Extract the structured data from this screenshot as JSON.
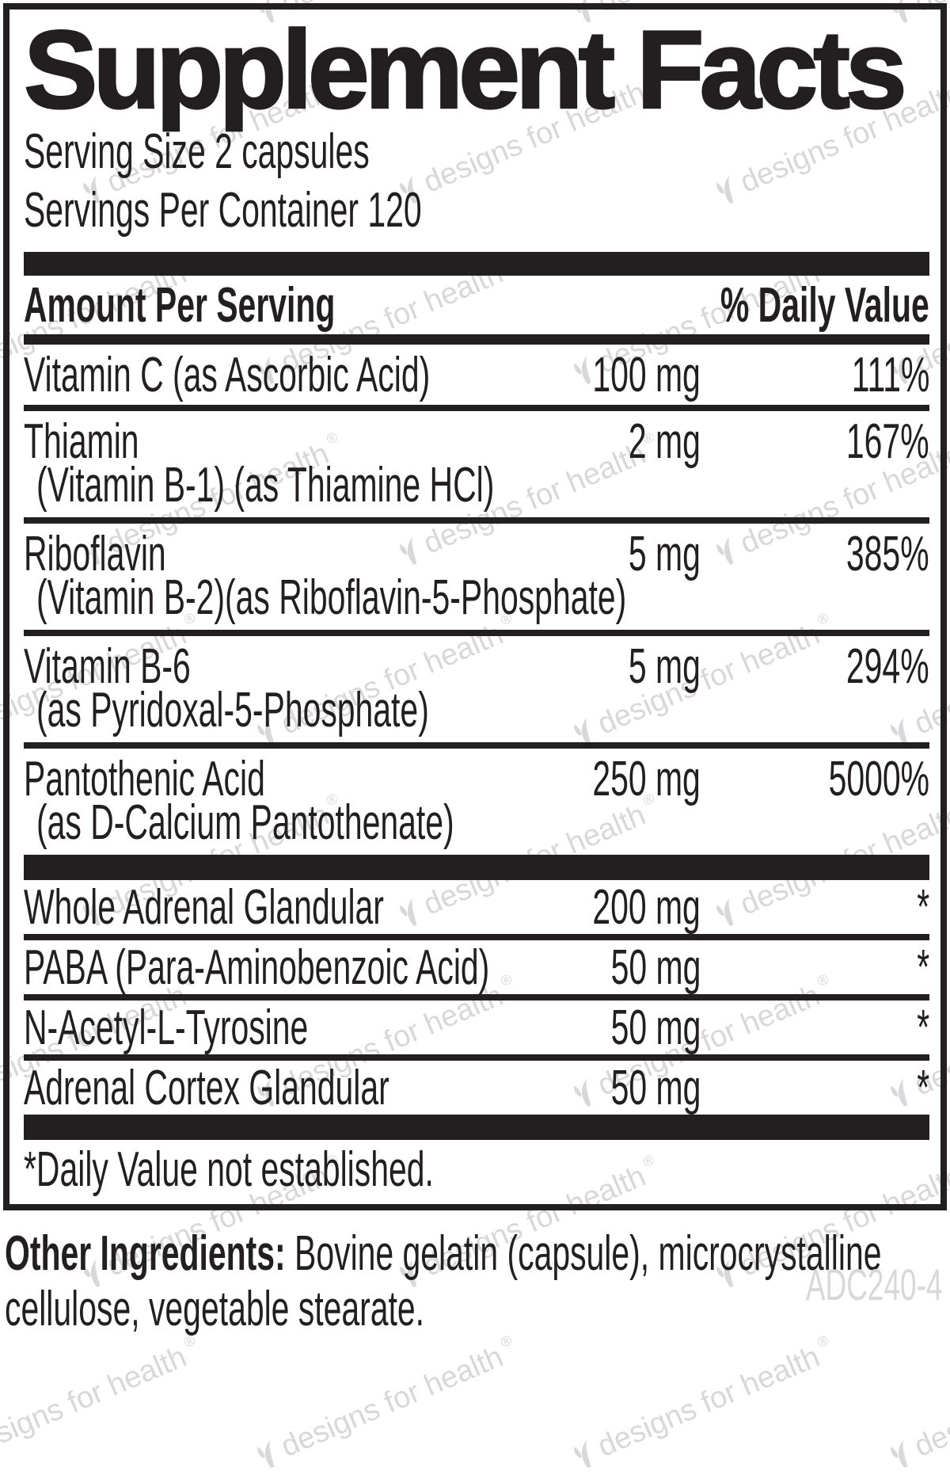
{
  "label": {
    "title": "Supplement Facts",
    "serving_size": "Serving Size 2 capsules",
    "servings_per_container": "Servings Per Container 120",
    "header": {
      "amount_col": "Amount Per Serving",
      "dv_col": "% Daily Value"
    },
    "nutrients": [
      {
        "name": "Vitamin C (as Ascorbic Acid)",
        "amount": "100 mg",
        "dv": "111%"
      },
      {
        "name": "Thiamin",
        "sub": "(Vitamin B-1) (as Thiamine HCl)",
        "amount": "2 mg",
        "dv": "167%"
      },
      {
        "name": "Riboflavin",
        "sub": "(Vitamin B-2)(as Riboflavin-5-Phosphate)",
        "amount": "5 mg",
        "dv": "385%"
      },
      {
        "name": "Vitamin B-6",
        "sub": "(as Pyridoxal-5-Phosphate)",
        "amount": "5 mg",
        "dv": "294%"
      },
      {
        "name": "Pantothenic Acid",
        "sub": "(as D-Calcium Pantothenate)",
        "amount": "250 mg",
        "dv": "5000%"
      }
    ],
    "other_compounds": [
      {
        "name": "Whole Adrenal Glandular",
        "amount": "200 mg",
        "dv": "*"
      },
      {
        "name": "PABA (Para-Aminobenzoic Acid)",
        "amount": "50 mg",
        "dv": "*"
      },
      {
        "name": "N-Acetyl-L-Tyrosine",
        "amount": "50 mg",
        "dv": "*"
      },
      {
        "name": "Adrenal Cortex Glandular",
        "amount": "50 mg",
        "dv": "*"
      }
    ],
    "footnote": "*Daily Value not established."
  },
  "other_ingredients": {
    "label": "Other Ingredients:",
    "lines": [
      "Bovine gelatin (capsule), microcrystalline",
      "cellulose, vegetable stearate."
    ]
  },
  "product_code": "ADC240-4",
  "watermark": {
    "text": "designs for health",
    "registered": "®",
    "logo_icon": "dfh-leaf-logo-icon"
  },
  "colors": {
    "ink": "#231f20",
    "watermark_gray": "#d8d8da"
  }
}
